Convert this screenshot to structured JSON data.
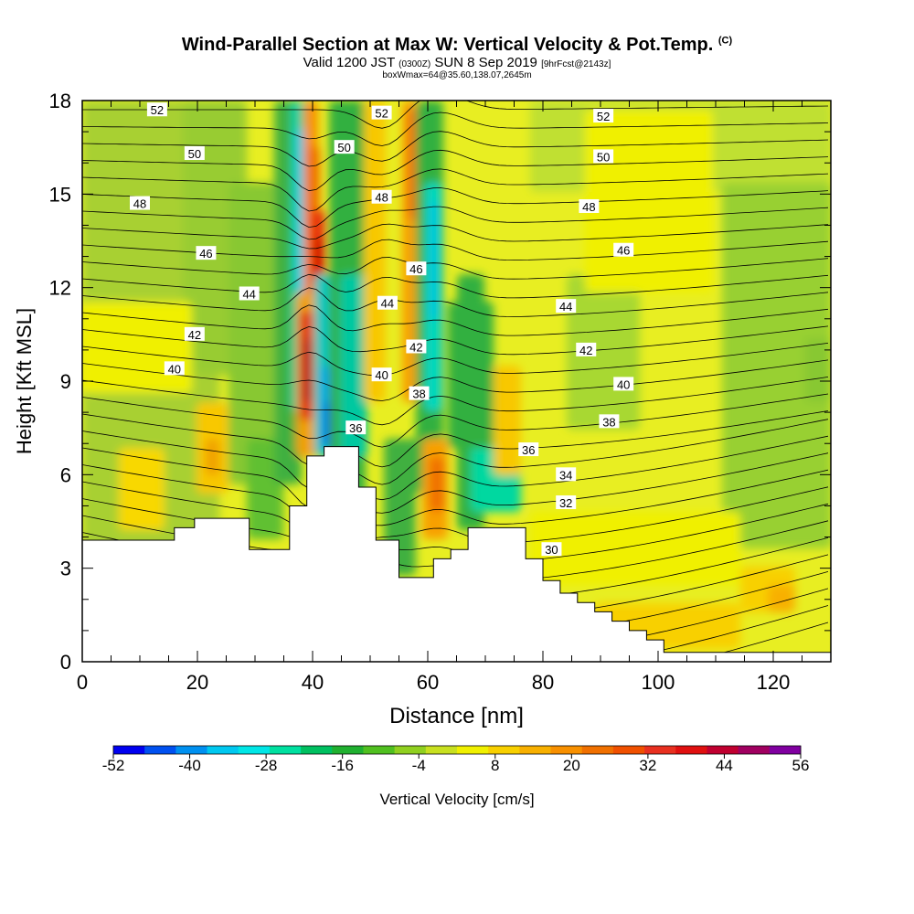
{
  "title": {
    "main": "Wind-Parallel Section at Max W: Vertical Velocity & Pot.Temp.",
    "tag": "(C)",
    "valid_prefix": "Valid 1200 JST",
    "valid_utc": "(0300Z)",
    "valid_date": "SUN 8 Sep 2019",
    "forecast": "[9hrFcst@2143z]",
    "box_info": "boxWmax=64@35.60,138.07,2645m"
  },
  "chart_data": {
    "type": "heatmap",
    "xlabel": "Distance [nm]",
    "ylabel": "Height [Kft MSL]",
    "xlim": [
      0,
      130
    ],
    "ylim": [
      0,
      18
    ],
    "x_ticks": [
      "0",
      "20",
      "40",
      "60",
      "80",
      "100",
      "120"
    ],
    "y_ticks": [
      "0",
      "3",
      "6",
      "9",
      "12",
      "15",
      "18"
    ],
    "colorbar": {
      "label": "Vertical Velocity [cm/s]",
      "tick_labels": [
        "-52",
        "-40",
        "-28",
        "-16",
        "-4",
        "8",
        "20",
        "32",
        "44",
        "56"
      ],
      "colors": [
        "#0000f0",
        "#0050f0",
        "#0090f0",
        "#00c8f0",
        "#00e6e6",
        "#00e0a0",
        "#00c060",
        "#20b030",
        "#50c020",
        "#90d020",
        "#c8e020",
        "#f0f000",
        "#f8d000",
        "#f8b000",
        "#f89000",
        "#f07000",
        "#f05000",
        "#e83020",
        "#e01010",
        "#c00030",
        "#a00060",
        "#8000a0"
      ]
    },
    "contour_labels": [
      {
        "text": "52",
        "x": 13,
        "y": 17.7
      },
      {
        "text": "50",
        "x": 19.5,
        "y": 16.3
      },
      {
        "text": "48",
        "x": 10,
        "y": 14.7
      },
      {
        "text": "46",
        "x": 21.5,
        "y": 13.1
      },
      {
        "text": "44",
        "x": 29,
        "y": 11.8
      },
      {
        "text": "42",
        "x": 19.5,
        "y": 10.5
      },
      {
        "text": "40",
        "x": 16,
        "y": 9.4
      },
      {
        "text": "52",
        "x": 52,
        "y": 17.6
      },
      {
        "text": "50",
        "x": 45.5,
        "y": 16.5
      },
      {
        "text": "48",
        "x": 52,
        "y": 14.9
      },
      {
        "text": "46",
        "x": 58,
        "y": 12.6
      },
      {
        "text": "44",
        "x": 53,
        "y": 11.5
      },
      {
        "text": "42",
        "x": 58,
        "y": 10.1
      },
      {
        "text": "40",
        "x": 52,
        "y": 9.2
      },
      {
        "text": "38",
        "x": 58.5,
        "y": 8.6
      },
      {
        "text": "36",
        "x": 47.5,
        "y": 7.5
      },
      {
        "text": "52",
        "x": 90.5,
        "y": 17.5
      },
      {
        "text": "50",
        "x": 90.5,
        "y": 16.2
      },
      {
        "text": "48",
        "x": 88,
        "y": 14.6
      },
      {
        "text": "46",
        "x": 94,
        "y": 13.2
      },
      {
        "text": "44",
        "x": 84,
        "y": 11.4
      },
      {
        "text": "42",
        "x": 87.5,
        "y": 10.0
      },
      {
        "text": "40",
        "x": 94,
        "y": 8.9
      },
      {
        "text": "38",
        "x": 91.5,
        "y": 7.7
      },
      {
        "text": "36",
        "x": 77.5,
        "y": 6.8
      },
      {
        "text": "34",
        "x": 84,
        "y": 6.0
      },
      {
        "text": "32",
        "x": 84,
        "y": 5.1
      },
      {
        "text": "30",
        "x": 81.5,
        "y": 3.6
      }
    ],
    "terrain": [
      [
        0,
        3.9
      ],
      [
        16,
        3.9
      ],
      [
        16,
        4.3
      ],
      [
        19.5,
        4.3
      ],
      [
        19.5,
        4.6
      ],
      [
        29,
        4.6
      ],
      [
        29,
        3.6
      ],
      [
        36,
        3.6
      ],
      [
        36,
        5.0
      ],
      [
        39,
        5.0
      ],
      [
        39,
        6.6
      ],
      [
        42,
        6.6
      ],
      [
        42,
        6.9
      ],
      [
        48,
        6.9
      ],
      [
        48,
        5.6
      ],
      [
        51,
        5.6
      ],
      [
        51,
        3.9
      ],
      [
        55,
        3.9
      ],
      [
        55,
        2.7
      ],
      [
        61,
        2.7
      ],
      [
        61,
        3.3
      ],
      [
        64,
        3.3
      ],
      [
        64,
        3.6
      ],
      [
        67,
        3.6
      ],
      [
        67,
        4.3
      ],
      [
        77,
        4.3
      ],
      [
        77,
        3.3
      ],
      [
        80,
        3.3
      ],
      [
        80,
        2.6
      ],
      [
        83,
        2.6
      ],
      [
        83,
        2.2
      ],
      [
        86,
        2.2
      ],
      [
        86,
        1.9
      ],
      [
        89,
        1.9
      ],
      [
        89,
        1.6
      ],
      [
        92,
        1.6
      ],
      [
        92,
        1.3
      ],
      [
        95,
        1.3
      ],
      [
        95,
        1.0
      ],
      [
        98,
        1.0
      ],
      [
        98,
        0.7
      ],
      [
        101,
        0.7
      ],
      [
        101,
        0.3
      ],
      [
        130,
        0.3
      ]
    ]
  }
}
